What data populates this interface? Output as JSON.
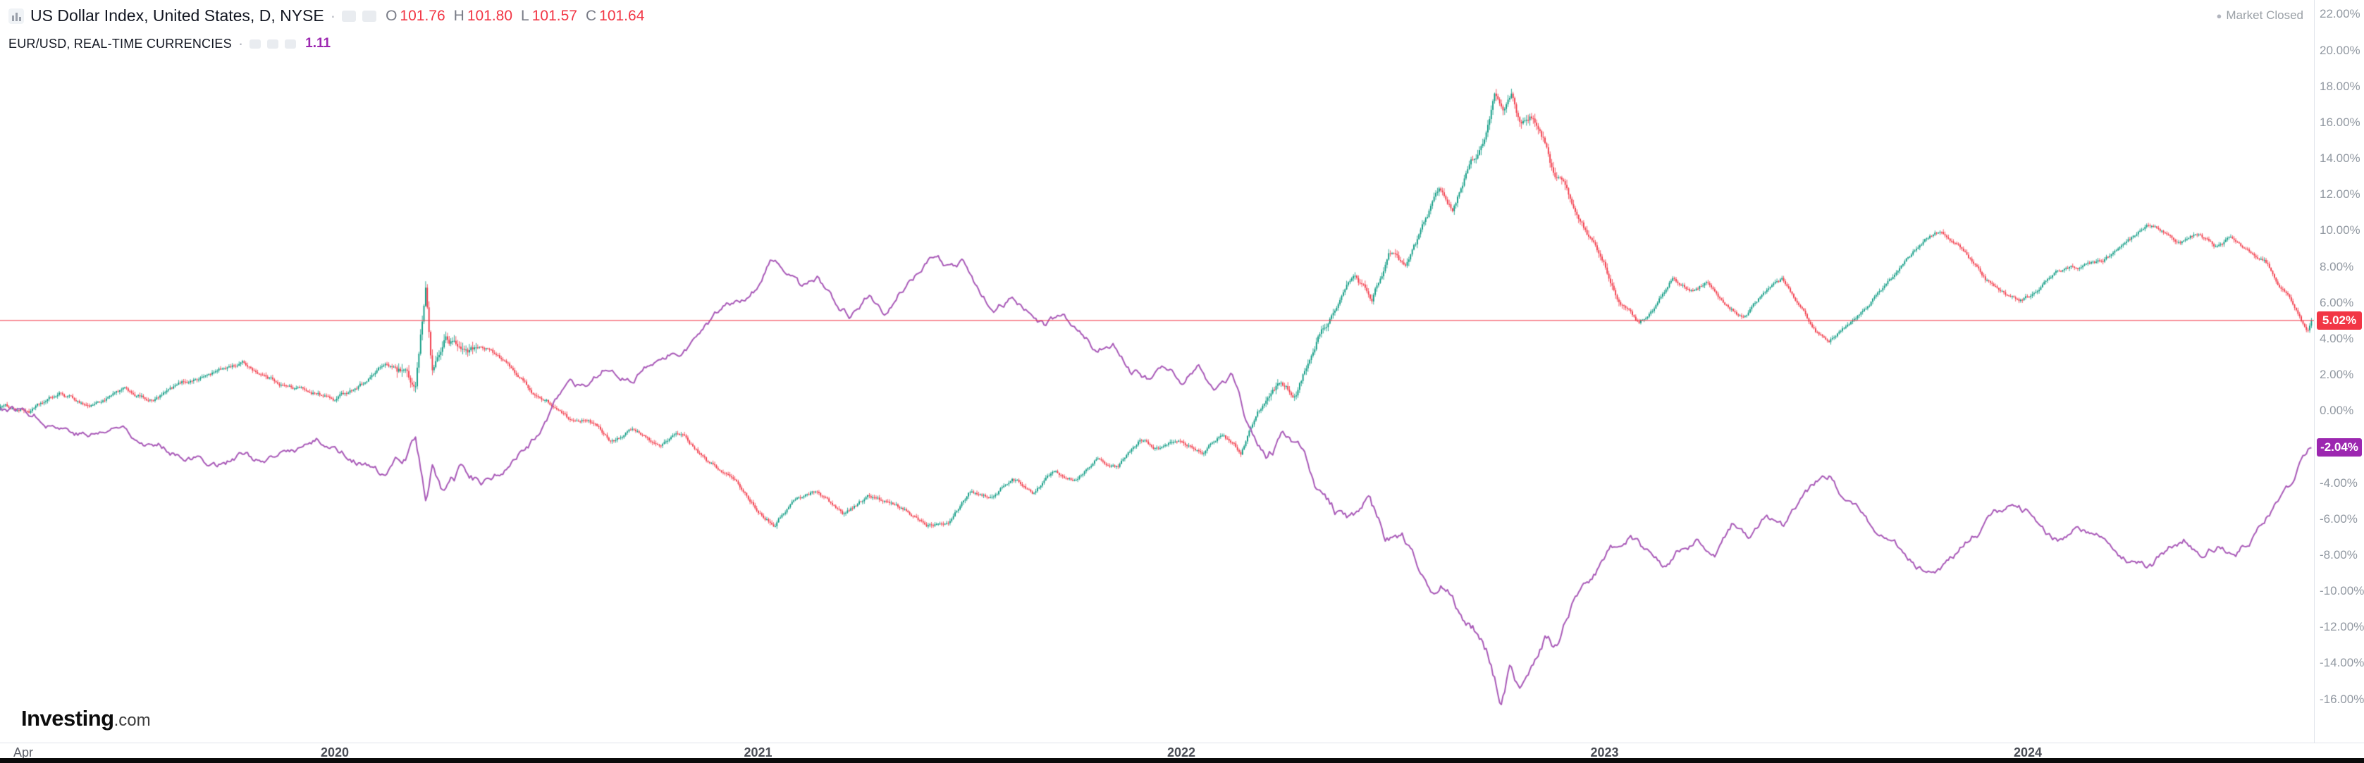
{
  "header": {
    "main_symbol": {
      "title": "US Dollar Index, United States, D, NYSE",
      "separator": "·",
      "ohlc": [
        {
          "label": "O",
          "value": "101.76"
        },
        {
          "label": "H",
          "value": "101.80"
        },
        {
          "label": "L",
          "value": "101.57"
        },
        {
          "label": "C",
          "value": "101.64"
        }
      ]
    },
    "compare_symbol": {
      "title": "EUR/USD, REAL-TIME CURRENCIES",
      "separator": "·",
      "value": "1.11"
    },
    "market_status": {
      "dot": "●",
      "label": "Market Closed"
    }
  },
  "watermark": {
    "brand": "Investing",
    "suffix": ".com"
  },
  "price_labels": {
    "dxy": "5.02%",
    "eur": "-2.04%"
  },
  "colors": {
    "up": "#089981",
    "down": "#f23645",
    "reference_line": "#f23645",
    "eur_line": "#a95ab8",
    "eur_badge": "#9c27b0",
    "dxy_badge": "#f23645"
  },
  "chart_data": {
    "type": "line",
    "title": "US Dollar Index vs EUR/USD, percent change, daily",
    "x_unit": "year",
    "xlim": [
      2019.209,
      2024.676
    ],
    "ylim": [
      -18.4,
      22.8
    ],
    "grid": false,
    "y_tick_values": [
      22,
      20,
      18,
      16,
      14,
      12,
      10,
      8,
      6,
      4,
      2,
      0,
      -2,
      -4,
      -6,
      -8,
      -10,
      -12,
      -14,
      -16
    ],
    "y_tick_suffix": "%",
    "x_ticks": [
      {
        "label": "Apr",
        "year": 2019.264,
        "major": false
      },
      {
        "label": "2020",
        "year": 2020.0,
        "major": true
      },
      {
        "label": "2021",
        "year": 2021.0,
        "major": true
      },
      {
        "label": "2022",
        "year": 2022.0,
        "major": true
      },
      {
        "label": "2023",
        "year": 2023.0,
        "major": true
      },
      {
        "label": "2024",
        "year": 2024.0,
        "major": true
      }
    ],
    "reference_line": {
      "value": 5.02
    },
    "series": [
      {
        "name": "US Dollar Index % change",
        "style": "candlestick",
        "last": 5.02,
        "anchors": [
          [
            2019.21,
            0.3
          ],
          [
            2019.28,
            0.0
          ],
          [
            2019.35,
            0.9
          ],
          [
            2019.42,
            0.3
          ],
          [
            2019.5,
            1.1
          ],
          [
            2019.57,
            0.5
          ],
          [
            2019.64,
            1.5
          ],
          [
            2019.72,
            2.2
          ],
          [
            2019.78,
            2.7
          ],
          [
            2019.84,
            1.9
          ],
          [
            2019.9,
            1.3
          ],
          [
            2019.96,
            1.0
          ],
          [
            2020.0,
            0.6
          ],
          [
            2020.06,
            1.5
          ],
          [
            2020.12,
            2.6
          ],
          [
            2020.16,
            2.1
          ],
          [
            2020.19,
            0.9
          ],
          [
            2020.215,
            6.6
          ],
          [
            2020.23,
            2.2
          ],
          [
            2020.26,
            4.0
          ],
          [
            2020.3,
            3.3
          ],
          [
            2020.36,
            3.5
          ],
          [
            2020.42,
            2.3
          ],
          [
            2020.47,
            1.0
          ],
          [
            2020.52,
            0.2
          ],
          [
            2020.56,
            -0.7
          ],
          [
            2020.6,
            -0.3
          ],
          [
            2020.65,
            -1.6
          ],
          [
            2020.7,
            -1.0
          ],
          [
            2020.76,
            -1.9
          ],
          [
            2020.82,
            -1.3
          ],
          [
            2020.88,
            -2.9
          ],
          [
            2020.94,
            -3.8
          ],
          [
            2021.0,
            -5.5
          ],
          [
            2021.04,
            -6.2
          ],
          [
            2021.08,
            -5.0
          ],
          [
            2021.14,
            -4.4
          ],
          [
            2021.2,
            -5.7
          ],
          [
            2021.26,
            -4.7
          ],
          [
            2021.32,
            -5.3
          ],
          [
            2021.4,
            -6.3
          ],
          [
            2021.45,
            -5.9
          ],
          [
            2021.5,
            -4.3
          ],
          [
            2021.55,
            -4.7
          ],
          [
            2021.6,
            -3.7
          ],
          [
            2021.65,
            -4.4
          ],
          [
            2021.7,
            -3.3
          ],
          [
            2021.75,
            -3.7
          ],
          [
            2021.8,
            -2.5
          ],
          [
            2021.85,
            -3.1
          ],
          [
            2021.9,
            -1.7
          ],
          [
            2021.95,
            -2.1
          ],
          [
            2022.0,
            -1.5
          ],
          [
            2022.05,
            -2.1
          ],
          [
            2022.1,
            -1.1
          ],
          [
            2022.14,
            -2.3
          ],
          [
            2022.18,
            0.1
          ],
          [
            2022.23,
            1.5
          ],
          [
            2022.27,
            0.9
          ],
          [
            2022.32,
            4.0
          ],
          [
            2022.37,
            5.9
          ],
          [
            2022.41,
            7.5
          ],
          [
            2022.45,
            6.2
          ],
          [
            2022.49,
            8.7
          ],
          [
            2022.53,
            7.8
          ],
          [
            2022.57,
            9.9
          ],
          [
            2022.61,
            12.3
          ],
          [
            2022.64,
            11.2
          ],
          [
            2022.67,
            13.1
          ],
          [
            2022.71,
            14.6
          ],
          [
            2022.74,
            17.5
          ],
          [
            2022.76,
            16.1
          ],
          [
            2022.78,
            17.2
          ],
          [
            2022.8,
            15.6
          ],
          [
            2022.83,
            16.3
          ],
          [
            2022.86,
            14.7
          ],
          [
            2022.88,
            12.9
          ],
          [
            2022.91,
            12.6
          ],
          [
            2022.94,
            10.5
          ],
          [
            2022.97,
            9.3
          ],
          [
            2023.0,
            8.0
          ],
          [
            2023.04,
            6.0
          ],
          [
            2023.08,
            4.8
          ],
          [
            2023.12,
            5.7
          ],
          [
            2023.16,
            7.3
          ],
          [
            2023.2,
            6.8
          ],
          [
            2023.24,
            7.2
          ],
          [
            2023.28,
            5.9
          ],
          [
            2023.33,
            5.2
          ],
          [
            2023.38,
            6.6
          ],
          [
            2023.42,
            7.2
          ],
          [
            2023.46,
            6.0
          ],
          [
            2023.5,
            4.4
          ],
          [
            2023.53,
            3.9
          ],
          [
            2023.56,
            4.7
          ],
          [
            2023.6,
            5.5
          ],
          [
            2023.65,
            6.7
          ],
          [
            2023.7,
            7.9
          ],
          [
            2023.75,
            9.3
          ],
          [
            2023.79,
            10.0
          ],
          [
            2023.83,
            9.4
          ],
          [
            2023.86,
            8.6
          ],
          [
            2023.9,
            7.2
          ],
          [
            2023.94,
            6.5
          ],
          [
            2023.98,
            6.0
          ],
          [
            2024.02,
            6.6
          ],
          [
            2024.06,
            7.5
          ],
          [
            2024.1,
            8.0
          ],
          [
            2024.14,
            8.1
          ],
          [
            2024.18,
            8.4
          ],
          [
            2024.23,
            9.2
          ],
          [
            2024.28,
            10.1
          ],
          [
            2024.32,
            9.7
          ],
          [
            2024.36,
            9.2
          ],
          [
            2024.4,
            9.8
          ],
          [
            2024.44,
            9.1
          ],
          [
            2024.48,
            9.6
          ],
          [
            2024.52,
            8.9
          ],
          [
            2024.56,
            8.3
          ],
          [
            2024.59,
            7.2
          ],
          [
            2024.62,
            6.3
          ],
          [
            2024.645,
            5.0
          ],
          [
            2024.66,
            4.3
          ],
          [
            2024.67,
            5.02
          ]
        ]
      },
      {
        "name": "EUR/USD % change",
        "style": "line",
        "last": -2.04,
        "anchors": [
          [
            2019.21,
            0.2
          ],
          [
            2019.28,
            0.0
          ],
          [
            2019.35,
            -0.7
          ],
          [
            2019.42,
            -1.3
          ],
          [
            2019.5,
            -0.9
          ],
          [
            2019.58,
            -1.9
          ],
          [
            2019.65,
            -2.3
          ],
          [
            2019.72,
            -2.9
          ],
          [
            2019.78,
            -2.4
          ],
          [
            2019.84,
            -3.0
          ],
          [
            2019.9,
            -2.3
          ],
          [
            2019.96,
            -1.7
          ],
          [
            2020.0,
            -2.0
          ],
          [
            2020.06,
            -2.7
          ],
          [
            2020.12,
            -3.8
          ],
          [
            2020.16,
            -2.5
          ],
          [
            2020.19,
            -1.3
          ],
          [
            2020.215,
            -5.1
          ],
          [
            2020.23,
            -2.7
          ],
          [
            2020.26,
            -4.4
          ],
          [
            2020.3,
            -3.7
          ],
          [
            2020.35,
            -4.1
          ],
          [
            2020.4,
            -3.3
          ],
          [
            2020.44,
            -2.3
          ],
          [
            2020.48,
            -1.4
          ],
          [
            2020.52,
            0.4
          ],
          [
            2020.56,
            1.2
          ],
          [
            2020.6,
            0.9
          ],
          [
            2020.65,
            2.4
          ],
          [
            2020.7,
            2.0
          ],
          [
            2020.76,
            2.7
          ],
          [
            2020.82,
            3.5
          ],
          [
            2020.88,
            4.7
          ],
          [
            2020.94,
            5.9
          ],
          [
            2021.0,
            7.1
          ],
          [
            2021.03,
            8.3
          ],
          [
            2021.06,
            7.7
          ],
          [
            2021.1,
            6.7
          ],
          [
            2021.14,
            7.2
          ],
          [
            2021.18,
            5.9
          ],
          [
            2021.22,
            5.3
          ],
          [
            2021.26,
            6.5
          ],
          [
            2021.3,
            5.7
          ],
          [
            2021.34,
            6.9
          ],
          [
            2021.38,
            7.9
          ],
          [
            2021.42,
            8.5
          ],
          [
            2021.45,
            7.9
          ],
          [
            2021.48,
            8.2
          ],
          [
            2021.52,
            6.5
          ],
          [
            2021.56,
            5.7
          ],
          [
            2021.6,
            6.3
          ],
          [
            2021.64,
            5.3
          ],
          [
            2021.68,
            4.7
          ],
          [
            2021.72,
            5.1
          ],
          [
            2021.76,
            4.3
          ],
          [
            2021.8,
            3.3
          ],
          [
            2021.84,
            3.9
          ],
          [
            2021.88,
            2.3
          ],
          [
            2021.92,
            1.9
          ],
          [
            2021.96,
            2.5
          ],
          [
            2022.0,
            1.7
          ],
          [
            2022.04,
            2.7
          ],
          [
            2022.08,
            1.3
          ],
          [
            2022.12,
            2.1
          ],
          [
            2022.16,
            -1.0
          ],
          [
            2022.2,
            -2.6
          ],
          [
            2022.24,
            -1.5
          ],
          [
            2022.28,
            -2.3
          ],
          [
            2022.32,
            -4.6
          ],
          [
            2022.36,
            -5.7
          ],
          [
            2022.4,
            -6.4
          ],
          [
            2022.44,
            -5.3
          ],
          [
            2022.48,
            -7.2
          ],
          [
            2022.52,
            -6.7
          ],
          [
            2022.56,
            -8.8
          ],
          [
            2022.6,
            -10.4
          ],
          [
            2022.63,
            -9.7
          ],
          [
            2022.66,
            -11.2
          ],
          [
            2022.7,
            -12.1
          ],
          [
            2022.73,
            -13.6
          ],
          [
            2022.755,
            -15.9
          ],
          [
            2022.775,
            -14.3
          ],
          [
            2022.8,
            -15.3
          ],
          [
            2022.83,
            -14.1
          ],
          [
            2022.86,
            -12.5
          ],
          [
            2022.89,
            -13.1
          ],
          [
            2022.92,
            -10.9
          ],
          [
            2022.95,
            -10.3
          ],
          [
            2022.98,
            -9.5
          ],
          [
            2023.02,
            -8.1
          ],
          [
            2023.06,
            -6.9
          ],
          [
            2023.1,
            -7.9
          ],
          [
            2023.14,
            -8.7
          ],
          [
            2023.18,
            -7.7
          ],
          [
            2023.22,
            -7.1
          ],
          [
            2023.26,
            -7.9
          ],
          [
            2023.3,
            -6.3
          ],
          [
            2023.34,
            -6.9
          ],
          [
            2023.38,
            -5.7
          ],
          [
            2023.42,
            -6.5
          ],
          [
            2023.46,
            -5.1
          ],
          [
            2023.5,
            -4.1
          ],
          [
            2023.53,
            -3.7
          ],
          [
            2023.56,
            -4.9
          ],
          [
            2023.6,
            -5.7
          ],
          [
            2023.64,
            -6.7
          ],
          [
            2023.68,
            -7.5
          ],
          [
            2023.72,
            -8.3
          ],
          [
            2023.76,
            -8.9
          ],
          [
            2023.8,
            -8.3
          ],
          [
            2023.84,
            -7.5
          ],
          [
            2023.88,
            -6.7
          ],
          [
            2023.92,
            -5.9
          ],
          [
            2023.96,
            -5.3
          ],
          [
            2024.0,
            -5.7
          ],
          [
            2024.04,
            -6.7
          ],
          [
            2024.08,
            -7.3
          ],
          [
            2024.12,
            -6.5
          ],
          [
            2024.16,
            -6.9
          ],
          [
            2024.2,
            -7.5
          ],
          [
            2024.25,
            -8.3
          ],
          [
            2024.29,
            -8.7
          ],
          [
            2024.33,
            -7.7
          ],
          [
            2024.37,
            -7.1
          ],
          [
            2024.41,
            -7.9
          ],
          [
            2024.45,
            -7.3
          ],
          [
            2024.49,
            -7.7
          ],
          [
            2024.53,
            -6.9
          ],
          [
            2024.56,
            -5.9
          ],
          [
            2024.59,
            -4.9
          ],
          [
            2024.62,
            -4.1
          ],
          [
            2024.64,
            -3.1
          ],
          [
            2024.66,
            -2.5
          ],
          [
            2024.67,
            -2.04
          ]
        ]
      }
    ]
  }
}
